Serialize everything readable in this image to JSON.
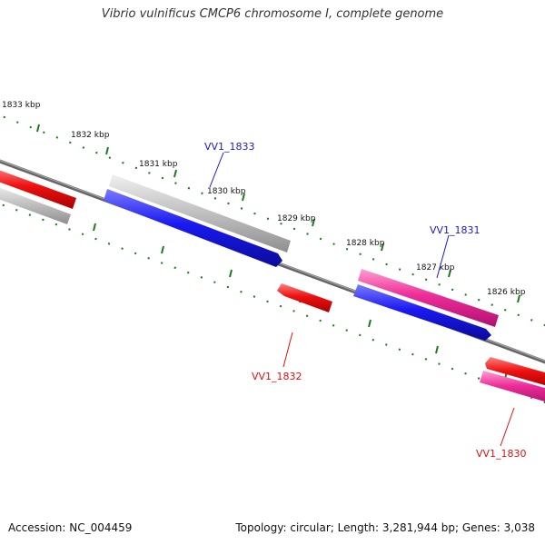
{
  "title": "Vibrio vulnificus CMCP6 chromosome I, complete genome",
  "footer": {
    "accession": "Accession: NC_004459",
    "summary": "Topology: circular; Length: 3,281,944 bp; Genes: 3,038"
  },
  "colors": {
    "backbone": "#8a8a8a",
    "tick": "#1e7a1e",
    "gene_blue": "#1a1af0",
    "gene_red": "#ee1111",
    "gene_pink": "#ee2d99",
    "gene_gray": "#bdbdbd",
    "label_blue": "#1a1acc",
    "label_red": "#dd1111"
  },
  "ticks": [
    "1833 kbp",
    "1832 kbp",
    "1831 kbp",
    "1830 kbp",
    "1829 kbp",
    "1828 kbp",
    "1827 kbp",
    "1826 kbp"
  ],
  "gene_labels": [
    "VV1_1833",
    "VV1_1832",
    "VV1_1831",
    "VV1_1830"
  ]
}
